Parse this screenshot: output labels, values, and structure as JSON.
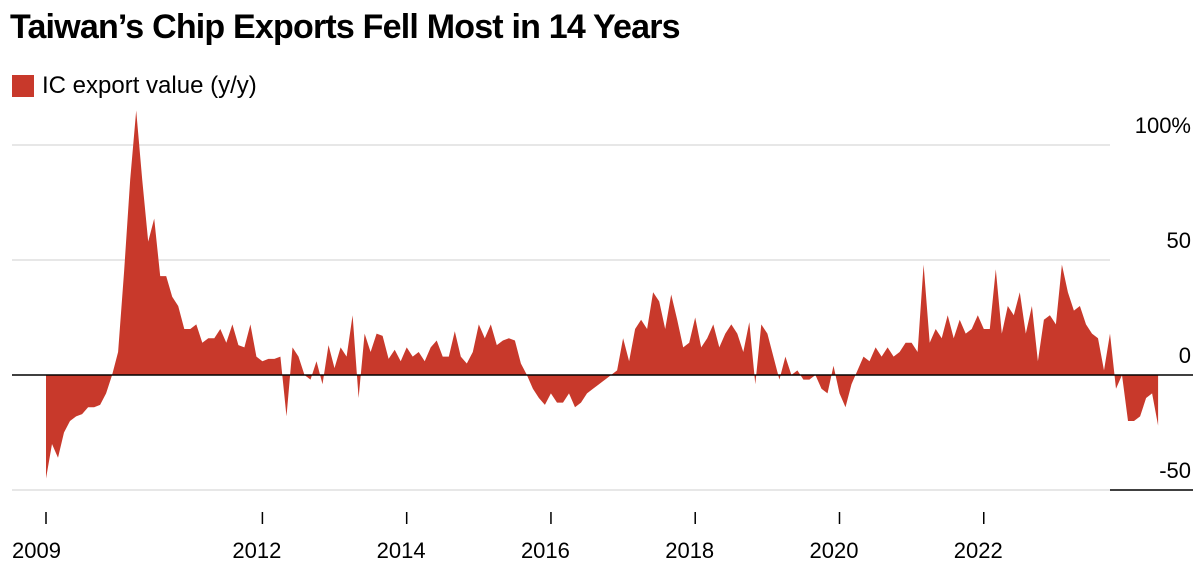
{
  "chart_data": {
    "type": "area",
    "title": "Taiwan’s Chip Exports Fell Most in 14 Years",
    "legend": [
      {
        "label": "IC export value (y/y)",
        "color": "#c8392b"
      }
    ],
    "x_ticks": [
      2009,
      2012,
      2014,
      2016,
      2018,
      2020,
      2022
    ],
    "y_ticks": [
      100,
      50,
      0,
      -50
    ],
    "y_tick_labels": [
      "100%",
      "50",
      "0",
      "-50"
    ],
    "ylim": [
      -50,
      100
    ],
    "xlim": [
      2009.0,
      2023.75
    ],
    "ylabel": "",
    "xlabel": "",
    "x_start": 2009.0,
    "x_step_months": 1,
    "series": [
      {
        "name": "IC export value (y/y)",
        "color": "#c8392b",
        "values": [
          -45,
          -30,
          -36,
          -25,
          -20,
          -18,
          -17,
          -14,
          -14,
          -13,
          -8,
          0,
          10,
          45,
          85,
          115,
          85,
          58,
          68,
          43,
          43,
          34,
          30,
          20,
          20,
          22,
          14,
          16,
          16,
          20,
          14,
          22,
          13,
          12,
          22,
          8,
          6,
          7,
          7,
          8,
          -18,
          12,
          8,
          0,
          -2,
          6,
          -4,
          13,
          3,
          12,
          8,
          26,
          -10,
          18,
          10,
          18,
          17,
          7,
          11,
          6,
          12,
          8,
          10,
          6,
          12,
          15,
          8,
          8,
          19,
          8,
          5,
          10,
          22,
          16,
          22,
          13,
          15,
          16,
          15,
          5,
          0,
          -6,
          -10,
          -13,
          -8,
          -12,
          -12,
          -8,
          -14,
          -12,
          -8,
          -6,
          -4,
          -2,
          0,
          2,
          16,
          6,
          20,
          24,
          20,
          36,
          32,
          20,
          35,
          24,
          12,
          14,
          25,
          12,
          16,
          22,
          12,
          18,
          22,
          18,
          10,
          23,
          -4,
          22,
          18,
          8,
          -2,
          8,
          0,
          2,
          -2,
          -2,
          0,
          -6,
          -8,
          4,
          -8,
          -14,
          -4,
          2,
          8,
          6,
          12,
          8,
          12,
          8,
          10,
          14,
          14,
          10,
          48,
          14,
          20,
          16,
          26,
          16,
          24,
          18,
          20,
          26,
          20,
          20,
          46,
          18,
          30,
          26,
          36,
          18,
          30,
          6,
          24,
          26,
          22,
          48,
          36,
          28,
          30,
          22,
          18,
          16,
          2,
          18,
          -6,
          0,
          -20,
          -20,
          -18,
          -10,
          -8,
          -22
        ]
      }
    ]
  }
}
